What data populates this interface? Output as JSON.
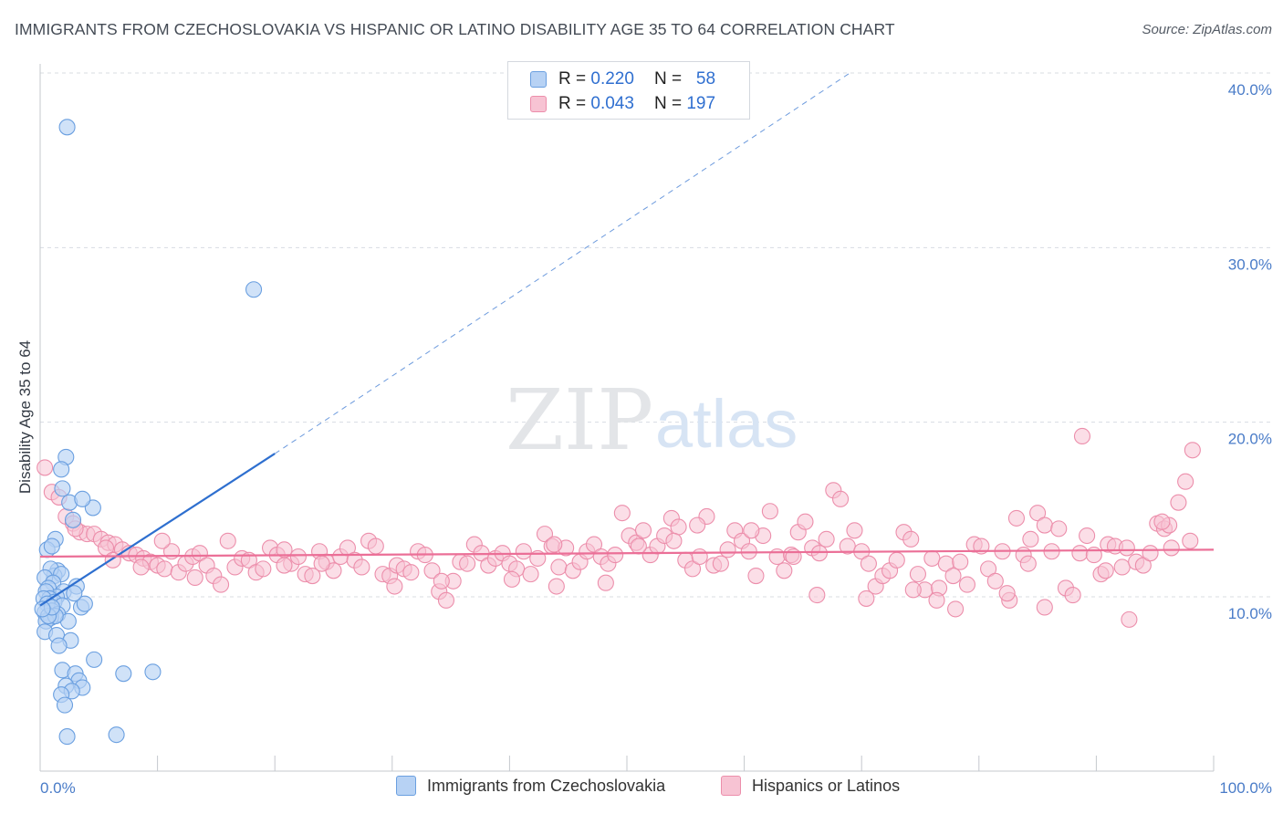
{
  "title": "IMMIGRANTS FROM CZECHOSLOVAKIA VS HISPANIC OR LATINO DISABILITY AGE 35 TO 64 CORRELATION CHART",
  "source": "Source: ZipAtlas.com",
  "watermark": {
    "zip": "ZIP",
    "atlas": "atlas"
  },
  "colors": {
    "blue_fill": "#b7d2f4",
    "blue_stroke": "#6a9fe0",
    "blue_line": "#2e6fcf",
    "pink_fill": "#f7c3d3",
    "pink_stroke": "#ec8eab",
    "pink_line": "#eb6f97",
    "tick_text": "#4a7cc8",
    "grid": "#d8dce2"
  },
  "legend": {
    "rows": [
      {
        "r_label": "R =",
        "r_value": "0.220",
        "n_label": "N =",
        "n_value": "58"
      },
      {
        "r_label": "R =",
        "r_value": "0.043",
        "n_label": "N =",
        "n_value": "197"
      }
    ]
  },
  "bottom_legend": {
    "series1": "Immigrants from Czechoslovakia",
    "series2": "Hispanics or Latinos"
  },
  "chart_data": {
    "type": "scatter",
    "title": "IMMIGRANTS FROM CZECHOSLOVAKIA VS HISPANIC OR LATINO DISABILITY AGE 35 TO 64 CORRELATION CHART",
    "xlabel": "",
    "ylabel": "Disability Age 35 to 64",
    "xlim": [
      0,
      100
    ],
    "ylim": [
      0,
      40.5
    ],
    "x_tick_labels": [
      "0.0%",
      "100.0%"
    ],
    "y_ticks": [
      10,
      20,
      30,
      40
    ],
    "y_tick_labels": [
      "10.0%",
      "20.0%",
      "30.0%",
      "40.0%"
    ],
    "series": [
      {
        "name": "Immigrants from Czechoslovakia",
        "R": 0.22,
        "N": 58,
        "trend": {
          "x0": 0,
          "y0": 9.5,
          "x1": 20,
          "y1": 18.2,
          "dash_to_x": 69,
          "dash_to_y": 40
        },
        "points": [
          [
            2.3,
            36.9
          ],
          [
            18.2,
            27.6
          ],
          [
            2.2,
            18.0
          ],
          [
            1.8,
            17.3
          ],
          [
            1.9,
            16.2
          ],
          [
            2.5,
            15.4
          ],
          [
            4.5,
            15.1
          ],
          [
            3.6,
            15.6
          ],
          [
            2.8,
            14.4
          ],
          [
            1.3,
            13.3
          ],
          [
            0.6,
            12.7
          ],
          [
            1.0,
            12.9
          ],
          [
            1.5,
            11.5
          ],
          [
            1.2,
            11.2
          ],
          [
            0.9,
            11.6
          ],
          [
            0.4,
            11.1
          ],
          [
            1.8,
            11.3
          ],
          [
            1.1,
            10.8
          ],
          [
            0.7,
            10.5
          ],
          [
            2.0,
            10.3
          ],
          [
            1.4,
            10.0
          ],
          [
            3.1,
            10.6
          ],
          [
            0.5,
            10.3
          ],
          [
            0.8,
            9.9
          ],
          [
            0.3,
            9.9
          ],
          [
            1.2,
            9.7
          ],
          [
            0.6,
            9.6
          ],
          [
            1.9,
            9.5
          ],
          [
            1.0,
            9.2
          ],
          [
            0.4,
            9.1
          ],
          [
            3.5,
            9.4
          ],
          [
            3.8,
            9.6
          ],
          [
            1.5,
            9.0
          ],
          [
            0.9,
            8.8
          ],
          [
            0.5,
            8.6
          ],
          [
            2.4,
            8.6
          ],
          [
            1.3,
            8.9
          ],
          [
            0.7,
            8.9
          ],
          [
            0.4,
            8.0
          ],
          [
            1.4,
            7.8
          ],
          [
            2.6,
            7.5
          ],
          [
            1.6,
            7.2
          ],
          [
            4.6,
            6.4
          ],
          [
            1.9,
            5.8
          ],
          [
            7.1,
            5.6
          ],
          [
            9.6,
            5.7
          ],
          [
            3.0,
            5.6
          ],
          [
            3.3,
            5.2
          ],
          [
            2.2,
            4.9
          ],
          [
            3.6,
            4.8
          ],
          [
            2.7,
            4.6
          ],
          [
            1.8,
            4.4
          ],
          [
            2.1,
            3.8
          ],
          [
            2.3,
            2.0
          ],
          [
            6.5,
            2.1
          ],
          [
            1.0,
            9.4
          ],
          [
            2.9,
            10.2
          ],
          [
            0.2,
            9.3
          ]
        ]
      },
      {
        "name": "Hispanics or Latinos",
        "R": 0.043,
        "N": 197,
        "trend": {
          "x0": 0,
          "y0": 12.3,
          "x1": 100,
          "y1": 12.7
        },
        "points": [
          [
            0.4,
            17.4
          ],
          [
            1.0,
            16.0
          ],
          [
            1.6,
            15.7
          ],
          [
            2.2,
            14.6
          ],
          [
            2.8,
            14.2
          ],
          [
            3.4,
            13.7
          ],
          [
            4.0,
            13.6
          ],
          [
            4.6,
            13.6
          ],
          [
            5.2,
            13.3
          ],
          [
            5.8,
            13.1
          ],
          [
            6.4,
            13.0
          ],
          [
            7.0,
            12.7
          ],
          [
            7.6,
            12.5
          ],
          [
            8.2,
            12.4
          ],
          [
            8.8,
            12.2
          ],
          [
            9.4,
            12.0
          ],
          [
            10.0,
            11.8
          ],
          [
            10.6,
            11.6
          ],
          [
            11.2,
            12.6
          ],
          [
            11.8,
            11.4
          ],
          [
            12.4,
            11.9
          ],
          [
            13.0,
            12.3
          ],
          [
            13.6,
            12.5
          ],
          [
            14.2,
            11.8
          ],
          [
            14.8,
            11.2
          ],
          [
            15.4,
            10.7
          ],
          [
            16.0,
            13.2
          ],
          [
            16.6,
            11.7
          ],
          [
            17.2,
            12.2
          ],
          [
            17.8,
            12.1
          ],
          [
            18.4,
            11.4
          ],
          [
            19.0,
            11.6
          ],
          [
            19.6,
            12.8
          ],
          [
            20.2,
            12.4
          ],
          [
            20.8,
            12.7
          ],
          [
            21.4,
            11.9
          ],
          [
            22.0,
            12.3
          ],
          [
            22.6,
            11.3
          ],
          [
            23.2,
            11.2
          ],
          [
            23.8,
            12.6
          ],
          [
            24.4,
            12.0
          ],
          [
            25.0,
            11.5
          ],
          [
            25.6,
            12.3
          ],
          [
            26.2,
            12.8
          ],
          [
            26.8,
            12.1
          ],
          [
            27.4,
            11.7
          ],
          [
            28.0,
            13.2
          ],
          [
            28.6,
            12.9
          ],
          [
            29.2,
            11.3
          ],
          [
            29.8,
            11.2
          ],
          [
            30.4,
            11.8
          ],
          [
            31.0,
            11.6
          ],
          [
            31.6,
            11.4
          ],
          [
            32.2,
            12.6
          ],
          [
            32.8,
            12.4
          ],
          [
            33.4,
            11.5
          ],
          [
            34.0,
            10.3
          ],
          [
            34.6,
            9.8
          ],
          [
            35.2,
            10.9
          ],
          [
            35.8,
            12.0
          ],
          [
            36.4,
            11.9
          ],
          [
            37.0,
            13.0
          ],
          [
            37.6,
            12.5
          ],
          [
            38.2,
            11.8
          ],
          [
            38.8,
            12.2
          ],
          [
            39.4,
            12.5
          ],
          [
            40.0,
            11.9
          ],
          [
            40.6,
            11.6
          ],
          [
            41.2,
            12.6
          ],
          [
            41.8,
            11.3
          ],
          [
            42.4,
            12.2
          ],
          [
            43.0,
            13.6
          ],
          [
            43.6,
            12.9
          ],
          [
            44.2,
            11.7
          ],
          [
            44.8,
            12.8
          ],
          [
            45.4,
            11.5
          ],
          [
            46.0,
            12.0
          ],
          [
            46.6,
            12.6
          ],
          [
            47.2,
            13.0
          ],
          [
            47.8,
            12.3
          ],
          [
            48.4,
            11.9
          ],
          [
            49.0,
            12.4
          ],
          [
            49.6,
            14.8
          ],
          [
            50.2,
            13.5
          ],
          [
            50.8,
            13.1
          ],
          [
            51.4,
            13.8
          ],
          [
            52.0,
            12.4
          ],
          [
            52.6,
            12.9
          ],
          [
            53.2,
            13.5
          ],
          [
            53.8,
            14.5
          ],
          [
            54.4,
            14.0
          ],
          [
            55.0,
            12.1
          ],
          [
            55.6,
            11.6
          ],
          [
            56.2,
            12.3
          ],
          [
            56.8,
            14.6
          ],
          [
            57.4,
            11.8
          ],
          [
            58.0,
            11.9
          ],
          [
            58.6,
            12.7
          ],
          [
            59.2,
            13.8
          ],
          [
            59.8,
            13.2
          ],
          [
            60.4,
            12.6
          ],
          [
            61.0,
            11.2
          ],
          [
            61.6,
            13.5
          ],
          [
            62.2,
            14.9
          ],
          [
            62.8,
            12.3
          ],
          [
            63.4,
            11.5
          ],
          [
            64.0,
            12.4
          ],
          [
            64.6,
            13.7
          ],
          [
            65.2,
            14.3
          ],
          [
            65.8,
            12.8
          ],
          [
            66.4,
            12.5
          ],
          [
            67.0,
            13.3
          ],
          [
            67.6,
            16.1
          ],
          [
            68.2,
            15.6
          ],
          [
            68.8,
            12.9
          ],
          [
            69.4,
            13.8
          ],
          [
            70.0,
            12.6
          ],
          [
            70.6,
            11.9
          ],
          [
            71.2,
            10.6
          ],
          [
            71.8,
            11.2
          ],
          [
            72.4,
            11.5
          ],
          [
            73.0,
            12.1
          ],
          [
            73.6,
            13.7
          ],
          [
            74.2,
            13.3
          ],
          [
            74.8,
            11.3
          ],
          [
            75.4,
            10.4
          ],
          [
            76.0,
            12.2
          ],
          [
            76.6,
            10.5
          ],
          [
            77.2,
            11.9
          ],
          [
            77.8,
            11.2
          ],
          [
            78.4,
            12.0
          ],
          [
            79.0,
            10.7
          ],
          [
            79.6,
            13.0
          ],
          [
            80.2,
            12.9
          ],
          [
            80.8,
            11.6
          ],
          [
            81.4,
            10.9
          ],
          [
            82.0,
            12.6
          ],
          [
            82.6,
            9.8
          ],
          [
            83.2,
            14.5
          ],
          [
            83.8,
            12.4
          ],
          [
            84.4,
            13.3
          ],
          [
            85.0,
            14.8
          ],
          [
            85.6,
            14.1
          ],
          [
            86.2,
            12.6
          ],
          [
            86.8,
            13.9
          ],
          [
            87.4,
            10.5
          ],
          [
            88.0,
            10.1
          ],
          [
            88.6,
            12.5
          ],
          [
            89.2,
            13.5
          ],
          [
            89.8,
            12.4
          ],
          [
            90.4,
            11.3
          ],
          [
            91.0,
            13.0
          ],
          [
            91.6,
            12.9
          ],
          [
            92.2,
            11.7
          ],
          [
            92.8,
            8.7
          ],
          [
            93.4,
            12.0
          ],
          [
            94.0,
            11.8
          ],
          [
            94.6,
            12.5
          ],
          [
            95.2,
            14.2
          ],
          [
            95.8,
            13.9
          ],
          [
            96.4,
            12.8
          ],
          [
            97.0,
            15.4
          ],
          [
            97.6,
            16.6
          ],
          [
            98.2,
            18.4
          ],
          [
            88.8,
            19.2
          ],
          [
            96.2,
            14.1
          ],
          [
            95.6,
            14.3
          ],
          [
            90.8,
            11.5
          ],
          [
            85.6,
            9.4
          ],
          [
            82.4,
            10.2
          ],
          [
            78.0,
            9.3
          ],
          [
            76.4,
            9.8
          ],
          [
            70.4,
            9.9
          ],
          [
            66.2,
            10.1
          ],
          [
            48.2,
            10.8
          ],
          [
            40.2,
            11.0
          ],
          [
            30.2,
            10.6
          ],
          [
            20.8,
            11.8
          ],
          [
            10.4,
            13.2
          ],
          [
            5.6,
            12.8
          ],
          [
            3.0,
            13.9
          ],
          [
            6.2,
            12.1
          ],
          [
            8.6,
            11.7
          ],
          [
            13.2,
            11.1
          ],
          [
            24.0,
            11.9
          ],
          [
            34.2,
            10.9
          ],
          [
            44.0,
            10.6
          ],
          [
            54.0,
            13.2
          ],
          [
            64.2,
            12.3
          ],
          [
            74.4,
            10.4
          ],
          [
            84.2,
            11.9
          ],
          [
            92.6,
            12.8
          ],
          [
            98.0,
            13.2
          ],
          [
            60.6,
            13.8
          ],
          [
            56.0,
            14.1
          ],
          [
            51.0,
            12.9
          ],
          [
            43.8,
            13.0
          ]
        ]
      }
    ]
  }
}
